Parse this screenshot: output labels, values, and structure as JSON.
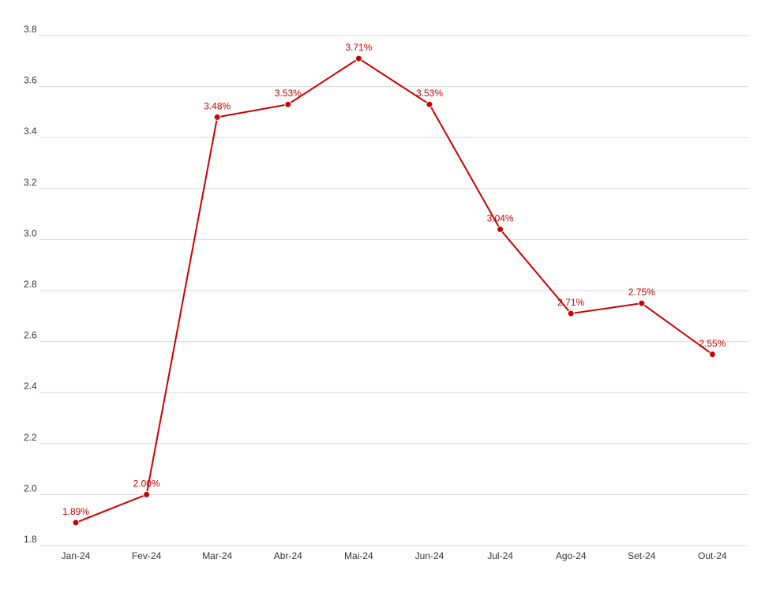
{
  "chart_data": {
    "type": "line",
    "title": "",
    "xlabel": "",
    "ylabel": "",
    "categories": [
      "Jan-24",
      "Fev-24",
      "Mar-24",
      "Abr-24",
      "Mai-24",
      "Jun-24",
      "Jul-24",
      "Ago-24",
      "Set-24",
      "Out-24"
    ],
    "series": [
      {
        "values": [
          1.89,
          2.0,
          3.48,
          3.53,
          3.71,
          3.53,
          3.04,
          2.71,
          2.75,
          2.55
        ],
        "labels": [
          "1.89%",
          "2.00%",
          "3.48%",
          "3.53%",
          "3.71%",
          "3.53%",
          "3.04%",
          "2.71%",
          "2.75%",
          "2.55%"
        ],
        "color": "#cc0000"
      }
    ],
    "ylim": [
      1.8,
      3.8
    ],
    "yticks": [
      "1.8",
      "2.0",
      "2.2",
      "2.4",
      "2.6",
      "2.8",
      "3.0",
      "3.2",
      "3.4",
      "3.6",
      "3.8"
    ],
    "grid": true,
    "legend": "none"
  }
}
